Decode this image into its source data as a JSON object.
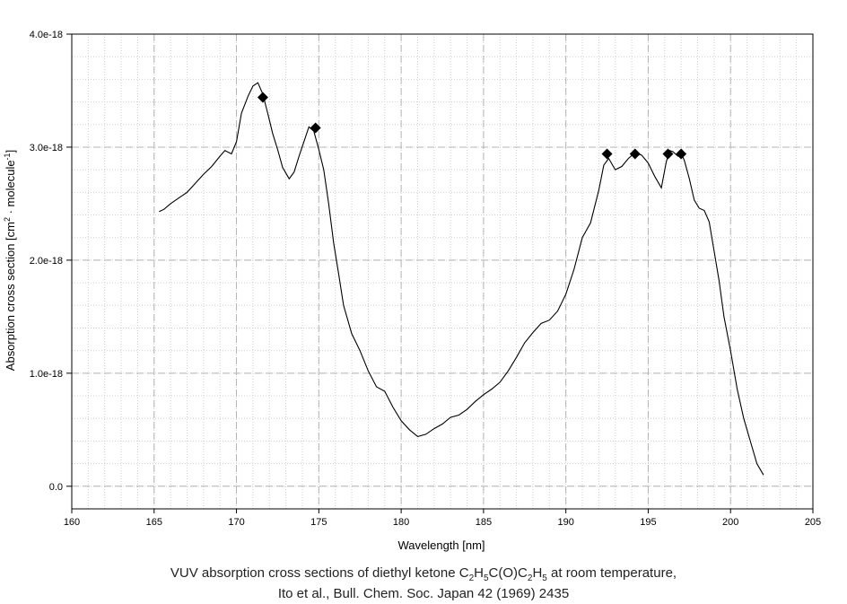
{
  "chart_data": {
    "type": "line",
    "xlabel": "Wavelength [nm]",
    "ylabel_parts": [
      "Absorption cross section [cm",
      "2",
      " · molecule",
      "-1",
      "]"
    ],
    "xlim": [
      160,
      205
    ],
    "ylim": [
      -2e-19,
      4e-18
    ],
    "x_ticks": [
      160,
      165,
      170,
      175,
      180,
      185,
      190,
      195,
      200,
      205
    ],
    "x_tick_labels": [
      "160",
      "165",
      "170",
      "175",
      "180",
      "185",
      "190",
      "195",
      "200",
      "205"
    ],
    "y_ticks": [
      0,
      1e-18,
      2e-18,
      3e-18,
      4e-18
    ],
    "y_tick_labels": [
      "0.0",
      "1.0e-18",
      "2.0e-18",
      "3.0e-18",
      "4.0e-18"
    ],
    "grid": true,
    "series": [
      {
        "x": [
          165.3,
          165.6,
          166,
          166.5,
          167,
          167.5,
          168,
          168.5,
          169,
          169.3,
          169.7,
          170,
          170.3,
          170.7,
          171,
          171.3,
          171.6,
          171.9,
          172.2,
          172.5,
          172.8,
          173.2,
          173.5,
          173.8,
          174.1,
          174.4,
          174.7,
          175,
          175.3,
          175.6,
          175.9,
          176.2,
          176.5,
          177,
          177.5,
          178,
          178.5,
          179,
          179.5,
          180,
          180.5,
          181,
          181.5,
          182,
          182.5,
          183,
          183.5,
          184,
          184.5,
          185,
          185.5,
          186,
          186.5,
          187,
          187.5,
          188,
          188.5,
          189,
          189.5,
          190,
          190.5,
          191,
          191.5,
          192,
          192.3,
          192.6,
          193,
          193.4,
          193.8,
          194.2,
          194.6,
          195,
          195.4,
          195.8,
          196.1,
          196.3,
          196.5,
          196.8,
          197,
          197.2,
          197.5,
          197.8,
          198.1,
          198.4,
          198.7,
          199,
          199.3,
          199.6,
          200,
          200.4,
          200.8,
          201.2,
          201.6,
          202
        ],
        "y": [
          2.43e-18,
          2.45e-18,
          2.5e-18,
          2.55e-18,
          2.6e-18,
          2.68e-18,
          2.76e-18,
          2.83e-18,
          2.92e-18,
          2.97e-18,
          2.94e-18,
          3.05e-18,
          3.3e-18,
          3.45e-18,
          3.54e-18,
          3.57e-18,
          3.47e-18,
          3.3e-18,
          3.12e-18,
          2.98e-18,
          2.82e-18,
          2.72e-18,
          2.78e-18,
          2.92e-18,
          3.05e-18,
          3.18e-18,
          3.14e-18,
          2.98e-18,
          2.8e-18,
          2.5e-18,
          2.15e-18,
          1.88e-18,
          1.6e-18,
          1.35e-18,
          1.2e-18,
          1.02e-18,
          8.8e-19,
          8.4e-19,
          7e-19,
          5.8e-19,
          5e-19,
          4.4e-19,
          4.6e-19,
          5.1e-19,
          5.5e-19,
          6.1e-19,
          6.3e-19,
          6.8e-19,
          7.5e-19,
          8.1e-19,
          8.6e-19,
          9.2e-19,
          1.02e-18,
          1.14e-18,
          1.27e-18,
          1.36e-18,
          1.44e-18,
          1.47e-18,
          1.55e-18,
          1.7e-18,
          1.92e-18,
          2.2e-18,
          2.33e-18,
          2.62e-18,
          2.84e-18,
          2.9e-18,
          2.8e-18,
          2.83e-18,
          2.9e-18,
          2.95e-18,
          2.93e-18,
          2.86e-18,
          2.74e-18,
          2.64e-18,
          2.87e-18,
          2.97e-18,
          2.96e-18,
          2.92e-18,
          2.95e-18,
          2.88e-18,
          2.72e-18,
          2.53e-18,
          2.46e-18,
          2.44e-18,
          2.34e-18,
          2.08e-18,
          1.82e-18,
          1.5e-18,
          1.2e-18,
          8.6e-19,
          6e-19,
          4e-19,
          2e-19,
          1e-19
        ]
      },
      {
        "type": "scatter",
        "marker": "diamond",
        "x": [
          171.6,
          174.8,
          192.5,
          194.2,
          196.2,
          197
        ],
        "y": [
          3.44e-18,
          3.17e-18,
          2.94e-18,
          2.94e-18,
          2.94e-18,
          2.94e-18
        ]
      }
    ]
  },
  "caption": {
    "line1_parts": [
      "VUV absorption cross sections of diethyl ketone C",
      "2",
      "H",
      "5",
      "C(O)C",
      "2",
      "H",
      "5",
      " at room temperature,"
    ],
    "line2": "Ito et al., Bull. Chem. Soc. Japan 42 (1969) 2435"
  },
  "colors": {
    "line": "#000000",
    "marker": "#000000",
    "major_grid": "#b4b4b4",
    "minor_grid": "#cfcfcf",
    "axis": "#000000"
  }
}
